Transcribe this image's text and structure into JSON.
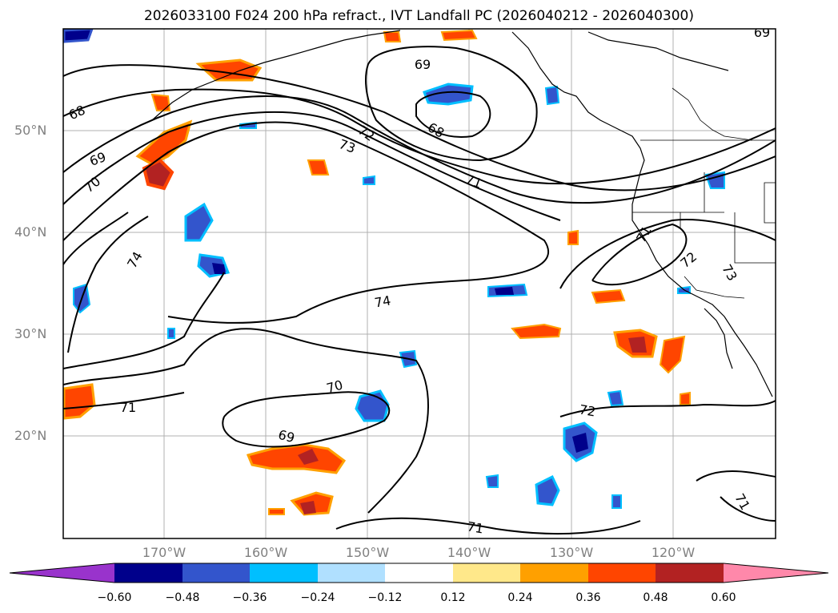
{
  "title": "2026033100 F024 200 hPa refract., IVT Landfall PC (2026040212 - 2026040300)",
  "lat_labels": [
    "50°N",
    "40°N",
    "30°N",
    "20°N"
  ],
  "lon_labels": [
    "170°W",
    "160°W",
    "150°W",
    "140°W",
    "130°W",
    "120°W"
  ],
  "contour_labels": [
    "69",
    "68",
    "68",
    "69",
    "70",
    "72",
    "73",
    "71",
    "74",
    "74",
    "71",
    "72",
    "73",
    "70",
    "71",
    "69",
    "72",
    "71",
    "71",
    "69"
  ],
  "colorbar": {
    "ticks": [
      "−0.60",
      "−0.48",
      "−0.36",
      "−0.24",
      "−0.12",
      "0.12",
      "0.24",
      "0.36",
      "0.48",
      "0.60"
    ],
    "colors": [
      "#9933cc",
      "#00008b",
      "#3355cc",
      "#00bfff",
      "#b0e0ff",
      "#ffffff",
      "#ffe88a",
      "#ffa000",
      "#ff4500",
      "#b22222",
      "#ff88aa"
    ]
  }
}
